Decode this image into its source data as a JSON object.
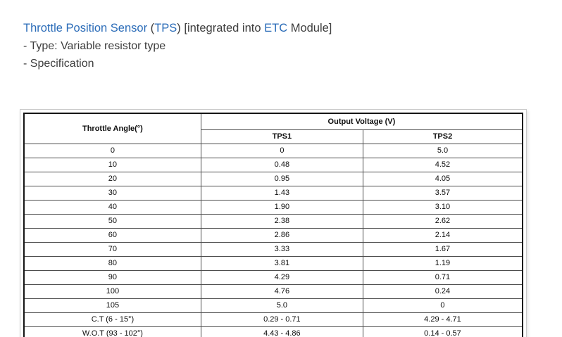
{
  "page": {
    "title_segments": [
      {
        "text": "Throttle Position Sensor",
        "style": "link"
      },
      {
        "text": " (",
        "style": "plain"
      },
      {
        "text": "TPS",
        "style": "link"
      },
      {
        "text": ") [integrated into ",
        "style": "plain"
      },
      {
        "text": "ETC",
        "style": "link"
      },
      {
        "text": " Module]",
        "style": "plain"
      }
    ],
    "line_type": "- Type: Variable resistor type",
    "line_spec": "- Specification"
  },
  "colors": {
    "link_blue": "#2b6cb8",
    "body_text": "#3d3d3d",
    "table_border_outer": "#151515",
    "table_border_inner": "#4d4d4d",
    "frame_border": "#c9c9c9"
  },
  "table": {
    "col1_header": "Throttle Angle(°)",
    "group_header": "Output Voltage (V)",
    "sub_headers": [
      "TPS1",
      "TPS2"
    ],
    "rows": [
      {
        "angle": "0",
        "tps1": "0",
        "tps2": "5.0"
      },
      {
        "angle": "10",
        "tps1": "0.48",
        "tps2": "4.52"
      },
      {
        "angle": "20",
        "tps1": "0.95",
        "tps2": "4.05"
      },
      {
        "angle": "30",
        "tps1": "1.43",
        "tps2": "3.57"
      },
      {
        "angle": "40",
        "tps1": "1.90",
        "tps2": "3.10"
      },
      {
        "angle": "50",
        "tps1": "2.38",
        "tps2": "2.62"
      },
      {
        "angle": "60",
        "tps1": "2.86",
        "tps2": "2.14"
      },
      {
        "angle": "70",
        "tps1": "3.33",
        "tps2": "1.67"
      },
      {
        "angle": "80",
        "tps1": "3.81",
        "tps2": "1.19"
      },
      {
        "angle": "90",
        "tps1": "4.29",
        "tps2": "0.71"
      },
      {
        "angle": "100",
        "tps1": "4.76",
        "tps2": "0.24"
      },
      {
        "angle": "105",
        "tps1": "5.0",
        "tps2": "0"
      },
      {
        "angle": "C.T (6 - 15°)",
        "tps1": "0.29 - 0.71",
        "tps2": "4.29 - 4.71"
      },
      {
        "angle": "W.O.T (93 - 102°)",
        "tps1": "4.43 - 4.86",
        "tps2": "0.14 - 0.57"
      }
    ]
  }
}
